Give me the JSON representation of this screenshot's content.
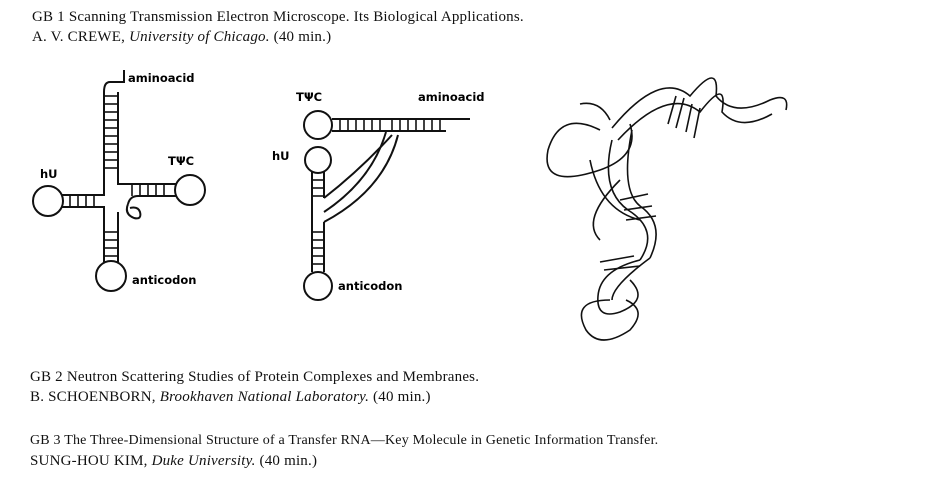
{
  "entries": [
    {
      "title": "GB 1 Scanning Transmission Electron Microscope. Its Biological Applications.",
      "author_name": "A. V. CREWE,",
      "affiliation": "University of Chicago.",
      "duration": "(40 min.)"
    },
    {
      "title": "GB 2 Neutron Scattering Studies of Protein Complexes and Membranes.",
      "author_name": "B. SCHOENBORN,",
      "affiliation": "Brookhaven National Laboratory.",
      "duration": "(40 min.)"
    },
    {
      "title": "GB 3 The Three-Dimensional Structure of a Transfer RNA—Key Molecule in Genetic Information Transfer.",
      "author_name": "SUNG-HOU KIM,",
      "affiliation": "Duke University.",
      "duration": "(40 min.)"
    }
  ],
  "figure": {
    "cloverleaf": {
      "aminoacid": "aminoacid",
      "hu": "hU",
      "tpc": "TΨC",
      "anticodon": "anticodon"
    },
    "lshape": {
      "tpc": "TΨC",
      "aminoacid": "aminoacid",
      "hu": "hU",
      "anticodon": "anticodon"
    }
  }
}
